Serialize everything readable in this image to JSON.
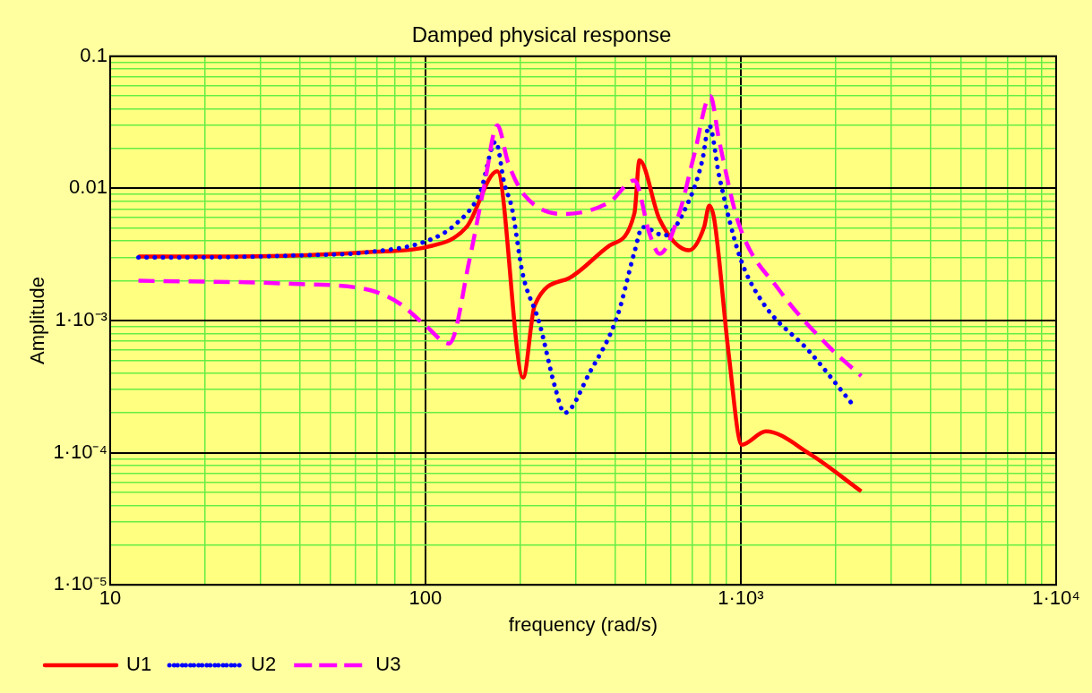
{
  "chart_data": {
    "type": "line",
    "title": "Damped physical response",
    "xlabel": "frequency (rad/s)",
    "ylabel": "Amplitude",
    "log": "xy",
    "grid": true,
    "legend": "bottom left",
    "marker": "none",
    "xlim": [
      10,
      10000
    ],
    "xticks": [
      10,
      {
        "value": 20,
        "label": null
      },
      {
        "value": 30,
        "label": null
      },
      {
        "value": 40,
        "label": null
      },
      {
        "value": 50,
        "label": null
      },
      {
        "value": 60,
        "label": null
      },
      {
        "value": 70,
        "label": null
      },
      {
        "value": 80,
        "label": null
      },
      {
        "value": 90,
        "label": null
      },
      100,
      {
        "value": 200,
        "label": null
      },
      {
        "value": 300,
        "label": null
      },
      {
        "value": 400,
        "label": null
      },
      {
        "value": 500,
        "label": null
      },
      {
        "value": 600,
        "label": null
      },
      {
        "value": 700,
        "label": null
      },
      {
        "value": 800,
        "label": null
      },
      {
        "value": 900,
        "label": null
      },
      {
        "value": 1000,
        "label": "1·10³"
      },
      {
        "value": 2000,
        "label": null
      },
      {
        "value": 3000,
        "label": null
      },
      {
        "value": 4000,
        "label": null
      },
      {
        "value": 5000,
        "label": null
      },
      {
        "value": 6000,
        "label": null
      },
      {
        "value": 7000,
        "label": null
      },
      {
        "value": 8000,
        "label": null
      },
      {
        "value": 9000,
        "label": null
      },
      {
        "value": 10000,
        "label": "1·10⁴"
      }
    ],
    "ylim": [
      1e-05,
      0.1
    ],
    "yticks": [
      {
        "value": 1e-05,
        "label": "1·10⁻⁵"
      },
      {
        "value": 2e-05,
        "label": null
      },
      {
        "value": 3e-05,
        "label": null
      },
      {
        "value": 4e-05,
        "label": null
      },
      {
        "value": 5e-05,
        "label": null
      },
      {
        "value": 6e-05,
        "label": null
      },
      {
        "value": 7e-05,
        "label": null
      },
      {
        "value": 8e-05,
        "label": null
      },
      {
        "value": 9e-05,
        "label": null
      },
      {
        "value": 0.0001,
        "label": "1·10⁻⁴"
      },
      {
        "value": 0.0002,
        "label": null
      },
      {
        "value": 0.0003,
        "label": null
      },
      {
        "value": 0.0004,
        "label": null
      },
      {
        "value": 0.0005,
        "label": null
      },
      {
        "value": 0.0006,
        "label": null
      },
      {
        "value": 0.0007,
        "label": null
      },
      {
        "value": 0.0008,
        "label": null
      },
      {
        "value": 0.0009,
        "label": null
      },
      {
        "value": 0.001,
        "label": "1·10⁻³"
      },
      {
        "value": 0.002,
        "label": null
      },
      {
        "value": 0.003,
        "label": null
      },
      {
        "value": 0.004,
        "label": null
      },
      {
        "value": 0.005,
        "label": null
      },
      {
        "value": 0.006,
        "label": null
      },
      {
        "value": 0.007,
        "label": null
      },
      {
        "value": 0.008,
        "label": null
      },
      {
        "value": 0.009,
        "label": null
      },
      0.01,
      {
        "value": 0.02,
        "label": null
      },
      {
        "value": 0.03,
        "label": null
      },
      {
        "value": 0.04,
        "label": null
      },
      {
        "value": 0.05,
        "label": null
      },
      {
        "value": 0.06,
        "label": null
      },
      {
        "value": 0.07,
        "label": null
      },
      {
        "value": 0.08,
        "label": null
      },
      {
        "value": 0.09,
        "label": null
      },
      0.1
    ],
    "series": [
      {
        "name": "U1",
        "color": "#ff0000",
        "line_style": "solid",
        "x": [
          12.3,
          17.9,
          37.2,
          66.6,
          101,
          135,
          169,
          204,
          222,
          286,
          384,
          460,
          477,
          553,
          685,
          765,
          794,
          824,
          916,
          1007,
          1201,
          1653,
          2410
        ],
        "values": [
          0.00305,
          0.00305,
          0.0031,
          0.0033,
          0.0036,
          0.0051,
          0.0135,
          0.00037,
          0.0013,
          0.0021,
          0.0037,
          0.0065,
          0.0163,
          0.0058,
          0.0034,
          0.0051,
          0.0074,
          0.0058,
          0.00055,
          0.000115,
          0.000145,
          9.8e-05,
          5.1e-05
        ]
      },
      {
        "name": "U2",
        "color": "#0000ff",
        "line_style": "dotted",
        "x": [
          12.3,
          17.9,
          37.2,
          66.6,
          101,
          124,
          149,
          167,
          178,
          188,
          203,
          230,
          257,
          276,
          331,
          407,
          460,
          488,
          572,
          687,
          755,
          794,
          855,
          990,
          1166,
          1653,
          2302
        ],
        "values": [
          0.003,
          0.003,
          0.0031,
          0.0033,
          0.004,
          0.0053,
          0.0093,
          0.0226,
          0.0108,
          0.0071,
          0.0023,
          0.00095,
          0.00032,
          0.0002,
          0.0004,
          0.0011,
          0.0033,
          0.0051,
          0.0044,
          0.0082,
          0.0163,
          0.03,
          0.0122,
          0.0031,
          0.0014,
          0.00058,
          0.00022
        ]
      },
      {
        "name": "U3",
        "color": "#ff00ff",
        "line_style": "dashed",
        "x": [
          12.3,
          37.2,
          66.6,
          82.6,
          99.4,
          119,
          138,
          154,
          169,
          183,
          206,
          276,
          384,
          460,
          514,
          553,
          638,
          711,
          800,
          855,
          985,
          1324,
          1909,
          2410
        ],
        "values": [
          0.002,
          0.0019,
          0.0017,
          0.00135,
          0.00093,
          0.00067,
          0.0029,
          0.0108,
          0.03,
          0.0156,
          0.0089,
          0.0064,
          0.0079,
          0.0115,
          0.0045,
          0.0032,
          0.0065,
          0.0178,
          0.05,
          0.0226,
          0.0054,
          0.0017,
          0.00063,
          0.00038
        ]
      }
    ]
  }
}
